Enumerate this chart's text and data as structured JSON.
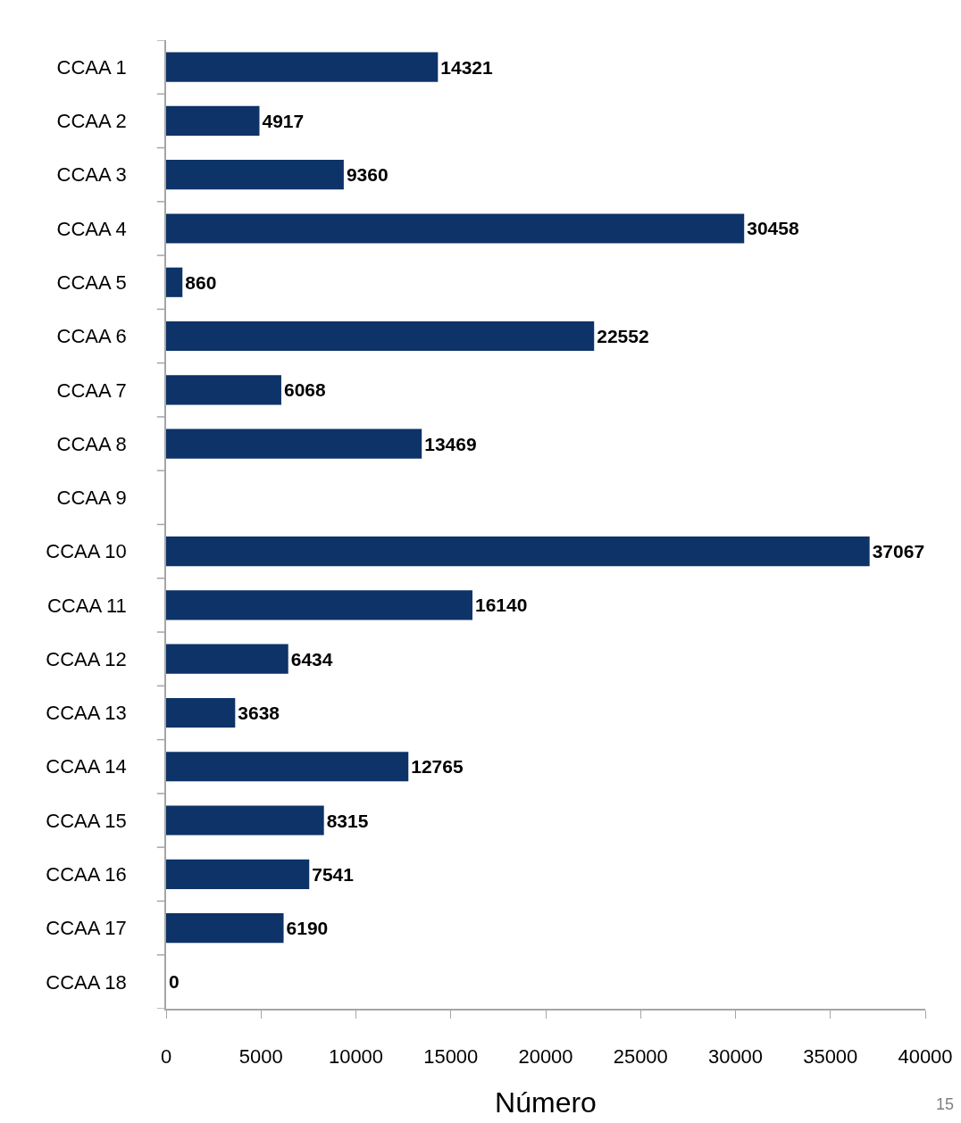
{
  "chart_data": {
    "type": "bar",
    "orientation": "horizontal",
    "categories": [
      "CCAA 1",
      "CCAA 2",
      "CCAA 3",
      "CCAA 4",
      "CCAA 5",
      "CCAA 6",
      "CCAA 7",
      "CCAA 8",
      "CCAA 9",
      "CCAA 10",
      "CCAA 11",
      "CCAA 12",
      "CCAA 13",
      "CCAA 14",
      "CCAA 15",
      "CCAA 16",
      "CCAA 17",
      "CCAA 18"
    ],
    "values": [
      14321,
      4917,
      9360,
      30458,
      860,
      22552,
      6068,
      13469,
      null,
      37067,
      16140,
      6434,
      3638,
      12765,
      8315,
      7541,
      6190,
      0
    ],
    "color": "#0d3368",
    "data_labels": true,
    "xlabel": "Número",
    "xlim": [
      0,
      40000
    ],
    "xticks": [
      0,
      5000,
      10000,
      15000,
      20000,
      25000,
      30000,
      35000,
      40000
    ],
    "annotations": [
      "15"
    ]
  }
}
